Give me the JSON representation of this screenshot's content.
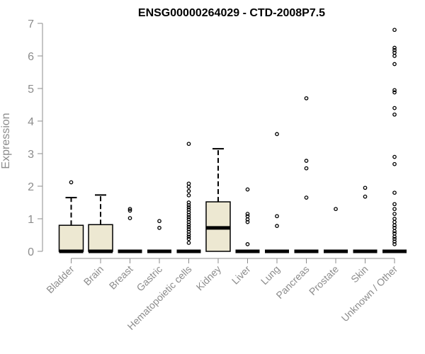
{
  "chart_data": {
    "type": "boxplot",
    "title": "ENSG00000264029 - CTD-2008P7.5",
    "xlabel": "",
    "ylabel": "Expression",
    "ylim": [
      0,
      7
    ],
    "yticks": [
      0,
      1,
      2,
      3,
      4,
      5,
      6,
      7
    ],
    "grid": false,
    "box_color": "#ede8d2",
    "categories": [
      "Bladder",
      "Brain",
      "Breast",
      "Gastric",
      "Hematopoietic cells",
      "Kidney",
      "Liver",
      "Lung",
      "Pancreas",
      "Prostate",
      "Skin",
      "Unknown / Other"
    ],
    "boxes": [
      {
        "q1": 0,
        "median": 0,
        "q3": 0.8,
        "whisker_low": 0,
        "whisker_high": 1.65,
        "outliers": [
          2.12
        ]
      },
      {
        "q1": 0,
        "median": 0,
        "q3": 0.82,
        "whisker_low": 0,
        "whisker_high": 1.73,
        "outliers": []
      },
      {
        "q1": 0,
        "median": 0,
        "q3": 0,
        "whisker_low": 0,
        "whisker_high": 0,
        "outliers": [
          1.02,
          1.25,
          1.3
        ]
      },
      {
        "q1": 0,
        "median": 0,
        "q3": 0,
        "whisker_low": 0,
        "whisker_high": 0,
        "outliers": [
          0.72,
          0.93
        ]
      },
      {
        "q1": 0,
        "median": 0,
        "q3": 0,
        "whisker_low": 0,
        "whisker_high": 0,
        "outliers": [
          3.3,
          2.08,
          1.98,
          1.85,
          1.72,
          1.5,
          1.42,
          1.35,
          1.28,
          1.2,
          1.12,
          1.05,
          0.98,
          0.9,
          0.82,
          0.75,
          0.68,
          0.6,
          0.52,
          0.45,
          0.38,
          0.26
        ]
      },
      {
        "q1": 0,
        "median": 0.72,
        "q3": 1.52,
        "whisker_low": 0,
        "whisker_high": 3.15,
        "outliers": []
      },
      {
        "q1": 0,
        "median": 0,
        "q3": 0,
        "whisker_low": 0,
        "whisker_high": 0,
        "outliers": [
          1.9,
          1.15,
          1.08,
          0.98,
          0.9,
          0.22
        ]
      },
      {
        "q1": 0,
        "median": 0,
        "q3": 0,
        "whisker_low": 0,
        "whisker_high": 0,
        "outliers": [
          3.6,
          1.08,
          0.78
        ]
      },
      {
        "q1": 0,
        "median": 0,
        "q3": 0,
        "whisker_low": 0,
        "whisker_high": 0,
        "outliers": [
          4.7,
          2.78,
          2.55,
          1.65
        ]
      },
      {
        "q1": 0,
        "median": 0,
        "q3": 0,
        "whisker_low": 0,
        "whisker_high": 0,
        "outliers": [
          1.3
        ]
      },
      {
        "q1": 0,
        "median": 0,
        "q3": 0,
        "whisker_low": 0,
        "whisker_high": 0,
        "outliers": [
          1.95,
          1.68
        ]
      },
      {
        "q1": 0,
        "median": 0,
        "q3": 0,
        "whisker_low": 0,
        "whisker_high": 0,
        "outliers": [
          6.8,
          6.25,
          6.18,
          6.1,
          6.0,
          5.75,
          4.95,
          4.88,
          4.4,
          4.2,
          2.9,
          2.68,
          1.8,
          1.45,
          1.3,
          1.15,
          1.0,
          0.9,
          0.8,
          0.72,
          0.62,
          0.55,
          0.45,
          0.38,
          0.3,
          0.22
        ]
      }
    ]
  }
}
